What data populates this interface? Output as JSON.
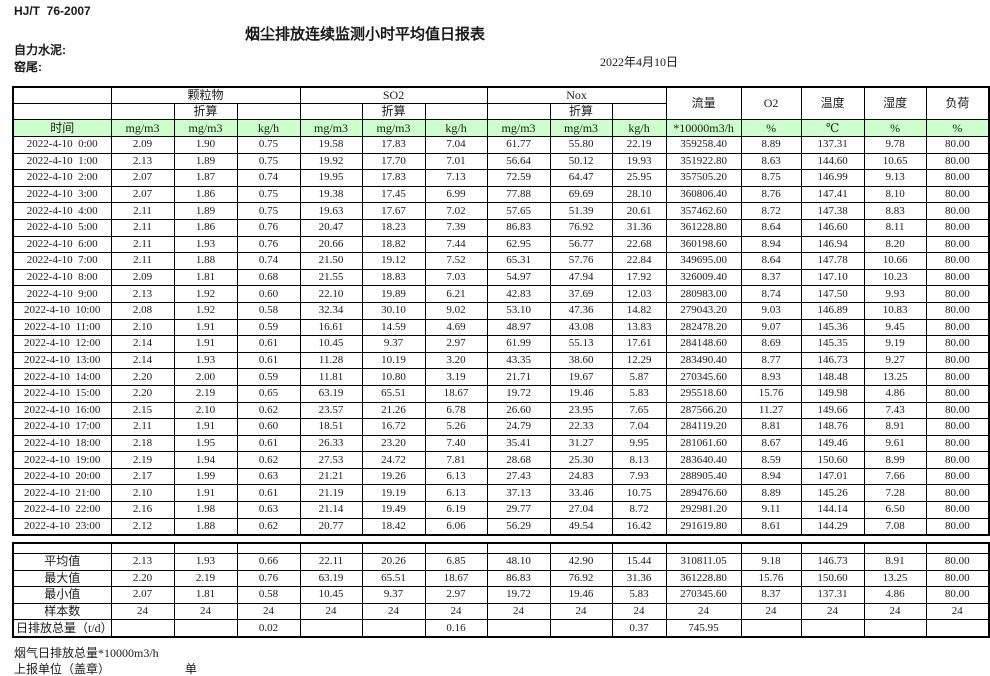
{
  "page": {
    "doc_code": "HJ/T  76-2007",
    "title": "烟尘排放连续监测小时平均值日报表",
    "company": "自力水泥:",
    "location": "窑尾:",
    "date": "2022年4月10日"
  },
  "colors": {
    "header_row_green": "#ccffcc"
  },
  "table": {
    "header": {
      "time_label": "时间",
      "groups": [
        {
          "label": "颗粒物",
          "sub": "折算"
        },
        {
          "label": "SO2",
          "sub": "折算"
        },
        {
          "label": "Nox",
          "sub": "折算"
        }
      ],
      "singles": [
        "流量",
        "O2",
        "温度",
        "湿度",
        "负荷"
      ],
      "units": [
        "mg/m3",
        "mg/m3",
        "kg/h",
        "mg/m3",
        "mg/m3",
        "kg/h",
        "mg/m3",
        "mg/m3",
        "kg/h",
        "*10000m3/h",
        "%",
        "℃",
        "%",
        "%"
      ]
    },
    "rows": [
      {
        "time": "2022-4-10  0:00",
        "values": [
          "2.09",
          "1.90",
          "0.75",
          "19.58",
          "17.83",
          "7.04",
          "61.77",
          "55.80",
          "22.19",
          "359258.40",
          "8.89",
          "137.31",
          "9.78",
          "80.00"
        ]
      },
      {
        "time": "2022-4-10  1:00",
        "values": [
          "2.13",
          "1.89",
          "0.75",
          "19.92",
          "17.70",
          "7.01",
          "56.64",
          "50.12",
          "19.93",
          "351922.80",
          "8.63",
          "144.60",
          "10.65",
          "80.00"
        ]
      },
      {
        "time": "2022-4-10  2:00",
        "values": [
          "2.07",
          "1.87",
          "0.74",
          "19.95",
          "17.83",
          "7.13",
          "72.59",
          "64.47",
          "25.95",
          "357505.20",
          "8.75",
          "146.99",
          "9.13",
          "80.00"
        ]
      },
      {
        "time": "2022-4-10  3:00",
        "values": [
          "2.07",
          "1.86",
          "0.75",
          "19.38",
          "17.45",
          "6.99",
          "77.88",
          "69.69",
          "28.10",
          "360806.40",
          "8.76",
          "147.41",
          "8.10",
          "80.00"
        ]
      },
      {
        "time": "2022-4-10  4:00",
        "values": [
          "2.11",
          "1.89",
          "0.75",
          "19.63",
          "17.67",
          "7.02",
          "57.65",
          "51.39",
          "20.61",
          "357462.60",
          "8.72",
          "147.38",
          "8.83",
          "80.00"
        ]
      },
      {
        "time": "2022-4-10  5:00",
        "values": [
          "2.11",
          "1.86",
          "0.76",
          "20.47",
          "18.23",
          "7.39",
          "86.83",
          "76.92",
          "31.36",
          "361228.80",
          "8.64",
          "146.60",
          "8.11",
          "80.00"
        ]
      },
      {
        "time": "2022-4-10  6:00",
        "values": [
          "2.11",
          "1.93",
          "0.76",
          "20.66",
          "18.82",
          "7.44",
          "62.95",
          "56.77",
          "22.68",
          "360198.60",
          "8.94",
          "146.94",
          "8.20",
          "80.00"
        ]
      },
      {
        "time": "2022-4-10  7:00",
        "values": [
          "2.11",
          "1.88",
          "0.74",
          "21.50",
          "19.12",
          "7.52",
          "65.31",
          "57.76",
          "22.84",
          "349695.00",
          "8.64",
          "147.78",
          "10.66",
          "80.00"
        ]
      },
      {
        "time": "2022-4-10  8:00",
        "values": [
          "2.09",
          "1.81",
          "0.68",
          "21.55",
          "18.83",
          "7.03",
          "54.97",
          "47.94",
          "17.92",
          "326009.40",
          "8.37",
          "147.10",
          "10.23",
          "80.00"
        ]
      },
      {
        "time": "2022-4-10  9:00",
        "values": [
          "2.13",
          "1.92",
          "0.60",
          "22.10",
          "19.89",
          "6.21",
          "42.83",
          "37.69",
          "12.03",
          "280983.00",
          "8.74",
          "147.50",
          "9.93",
          "80.00"
        ]
      },
      {
        "time": "2022-4-10  10:00",
        "values": [
          "2.08",
          "1.92",
          "0.58",
          "32.34",
          "30.10",
          "9.02",
          "53.10",
          "47.36",
          "14.82",
          "279043.20",
          "9.03",
          "146.89",
          "10.83",
          "80.00"
        ]
      },
      {
        "time": "2022-4-10  11:00",
        "values": [
          "2.10",
          "1.91",
          "0.59",
          "16.61",
          "14.59",
          "4.69",
          "48.97",
          "43.08",
          "13.83",
          "282478.20",
          "9.07",
          "145.36",
          "9.45",
          "80.00"
        ]
      },
      {
        "time": "2022-4-10  12:00",
        "values": [
          "2.14",
          "1.91",
          "0.61",
          "10.45",
          "9.37",
          "2.97",
          "61.99",
          "55.13",
          "17.61",
          "284148.60",
          "8.69",
          "145.35",
          "9.19",
          "80.00"
        ]
      },
      {
        "time": "2022-4-10  13:00",
        "values": [
          "2.14",
          "1.93",
          "0.61",
          "11.28",
          "10.19",
          "3.20",
          "43.35",
          "38.60",
          "12.29",
          "283490.40",
          "8.77",
          "146.73",
          "9.27",
          "80.00"
        ]
      },
      {
        "time": "2022-4-10  14:00",
        "values": [
          "2.20",
          "2.00",
          "0.59",
          "11.81",
          "10.80",
          "3.19",
          "21.71",
          "19.67",
          "5.87",
          "270345.60",
          "8.93",
          "148.48",
          "13.25",
          "80.00"
        ]
      },
      {
        "time": "2022-4-10  15:00",
        "values": [
          "2.20",
          "2.19",
          "0.65",
          "63.19",
          "65.51",
          "18.67",
          "19.72",
          "19.46",
          "5.83",
          "295518.60",
          "15.76",
          "149.98",
          "4.86",
          "80.00"
        ]
      },
      {
        "time": "2022-4-10  16:00",
        "values": [
          "2.15",
          "2.10",
          "0.62",
          "23.57",
          "21.26",
          "6.78",
          "26.60",
          "23.95",
          "7.65",
          "287566.20",
          "11.27",
          "149.66",
          "7.43",
          "80.00"
        ]
      },
      {
        "time": "2022-4-10  17:00",
        "values": [
          "2.11",
          "1.91",
          "0.60",
          "18.51",
          "16.72",
          "5.26",
          "24.79",
          "22.33",
          "7.04",
          "284119.20",
          "8.81",
          "148.76",
          "8.91",
          "80.00"
        ]
      },
      {
        "time": "2022-4-10  18:00",
        "values": [
          "2.18",
          "1.95",
          "0.61",
          "26.33",
          "23.20",
          "7.40",
          "35.41",
          "31.27",
          "9.95",
          "281061.60",
          "8.67",
          "149.46",
          "9.61",
          "80.00"
        ]
      },
      {
        "time": "2022-4-10  19:00",
        "values": [
          "2.19",
          "1.94",
          "0.62",
          "27.53",
          "24.72",
          "7.81",
          "28.68",
          "25.30",
          "8.13",
          "283640.40",
          "8.59",
          "150.60",
          "8.99",
          "80.00"
        ]
      },
      {
        "time": "2022-4-10  20:00",
        "values": [
          "2.17",
          "1.99",
          "0.63",
          "21.21",
          "19.26",
          "6.13",
          "27.43",
          "24.83",
          "7.93",
          "288905.40",
          "8.94",
          "147.01",
          "7.66",
          "80.00"
        ]
      },
      {
        "time": "2022-4-10  21:00",
        "values": [
          "2.10",
          "1.91",
          "0.61",
          "21.19",
          "19.19",
          "6.13",
          "37.13",
          "33.46",
          "10.75",
          "289476.60",
          "8.89",
          "145.26",
          "7.28",
          "80.00"
        ]
      },
      {
        "time": "2022-4-10  22:00",
        "values": [
          "2.16",
          "1.98",
          "0.63",
          "21.14",
          "19.49",
          "6.19",
          "29.77",
          "27.04",
          "8.72",
          "292981.20",
          "9.11",
          "144.14",
          "6.50",
          "80.00"
        ]
      },
      {
        "time": "2022-4-10  23:00",
        "values": [
          "2.12",
          "1.88",
          "0.62",
          "20.77",
          "18.42",
          "6.06",
          "56.29",
          "49.54",
          "16.42",
          "291619.80",
          "8.61",
          "144.29",
          "7.08",
          "80.00"
        ]
      }
    ],
    "summary": [
      {
        "label": "平均值",
        "values": [
          "2.13",
          "1.93",
          "0.66",
          "22.11",
          "20.26",
          "6.85",
          "48.10",
          "42.90",
          "15.44",
          "310811.05",
          "9.18",
          "146.73",
          "8.91",
          "80.00"
        ]
      },
      {
        "label": "最大值",
        "values": [
          "2.20",
          "2.19",
          "0.76",
          "63.19",
          "65.51",
          "18.67",
          "86.83",
          "76.92",
          "31.36",
          "361228.80",
          "15.76",
          "150.60",
          "13.25",
          "80.00"
        ]
      },
      {
        "label": "最小值",
        "values": [
          "2.07",
          "1.81",
          "0.58",
          "10.45",
          "9.37",
          "2.97",
          "19.72",
          "19.46",
          "5.83",
          "270345.60",
          "8.37",
          "137.31",
          "4.86",
          "80.00"
        ]
      },
      {
        "label": "样本数",
        "values": [
          "24",
          "24",
          "24",
          "24",
          "24",
          "24",
          "24",
          "24",
          "24",
          "24",
          "24",
          "24",
          "24",
          "24"
        ]
      },
      {
        "label": "日排放总量（t/d）",
        "values": [
          "",
          "",
          "0.02",
          "",
          "",
          "0.16",
          "",
          "",
          "0.37",
          "745.95",
          "",
          "",
          "",
          ""
        ]
      }
    ]
  },
  "footer": {
    "note": "烟气日排放总量*10000m3/h",
    "report_unit": "上报单位（盖章）",
    "unit_label": "单位"
  }
}
